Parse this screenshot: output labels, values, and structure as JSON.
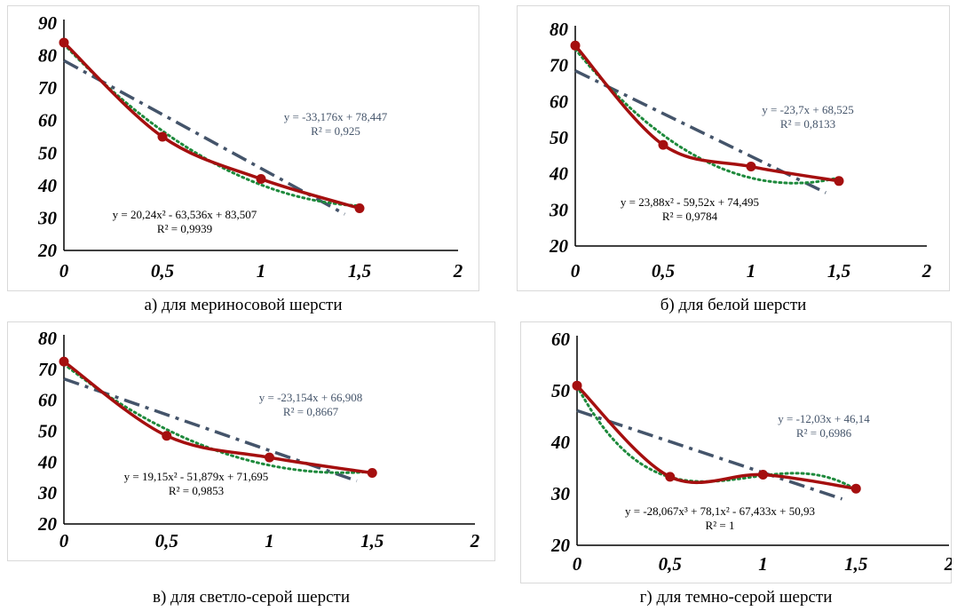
{
  "colors": {
    "data_line": "#a50f0f",
    "data_marker": "#a50f0f",
    "linear_trend": "#44546a",
    "poly_trend": "#1e8a3c",
    "axis": "#000000"
  },
  "chart_data": [
    {
      "type": "line",
      "caption": "а) для мериносовой шерсти",
      "x": [
        0,
        0.5,
        1,
        1.5
      ],
      "series": [
        {
          "values": [
            84,
            55,
            42,
            33
          ]
        }
      ],
      "xlim": [
        0,
        2
      ],
      "ylim": [
        20,
        90
      ],
      "xticks": [
        "0",
        "0,5",
        "1",
        "1,5",
        "2"
      ],
      "yticks": [
        "20",
        "30",
        "40",
        "50",
        "60",
        "70",
        "80",
        "90"
      ],
      "linear_trend": {
        "slope": -33.176,
        "intercept": 78.447,
        "equation": "y = -33,176x + 78,447",
        "r2": "R² = 0,925"
      },
      "poly_trend": {
        "coefs": [
          83.507,
          -63.536,
          20.24
        ],
        "equation": "y = 20,24x² - 63,536x + 83,507",
        "r2": "R² = 0,9939"
      }
    },
    {
      "type": "line",
      "caption": "б) для белой шерсти",
      "x": [
        0,
        0.5,
        1,
        1.5
      ],
      "series": [
        {
          "values": [
            75.5,
            48,
            42,
            38
          ]
        }
      ],
      "xlim": [
        0,
        2
      ],
      "ylim": [
        20,
        80
      ],
      "xticks": [
        "0",
        "0,5",
        "1",
        "1,5",
        "2"
      ],
      "yticks": [
        "20",
        "30",
        "40",
        "50",
        "60",
        "70",
        "80"
      ],
      "linear_trend": {
        "slope": -23.7,
        "intercept": 68.525,
        "equation": "y = -23,7x + 68,525",
        "r2": "R² = 0,8133"
      },
      "poly_trend": {
        "coefs": [
          74.495,
          -59.52,
          23.88
        ],
        "equation": "y = 23,88x² - 59,52x + 74,495",
        "r2": "R² = 0,9784"
      }
    },
    {
      "type": "line",
      "caption": "в) для светло-серой шерсти",
      "x": [
        0,
        0.5,
        1,
        1.5
      ],
      "series": [
        {
          "values": [
            72.5,
            48.5,
            41.5,
            36.5
          ]
        }
      ],
      "xlim": [
        0,
        2
      ],
      "ylim": [
        20,
        80
      ],
      "xticks": [
        "0",
        "0,5",
        "1",
        "1,5",
        "2"
      ],
      "yticks": [
        "20",
        "30",
        "40",
        "50",
        "60",
        "70",
        "80"
      ],
      "linear_trend": {
        "slope": -23.154,
        "intercept": 66.908,
        "equation": "y = -23,154x + 66,908",
        "r2": "R² = 0,8667"
      },
      "poly_trend": {
        "coefs": [
          71.695,
          -51.879,
          19.15
        ],
        "equation": "y = 19,15x² - 51,879x + 71,695",
        "r2": "R² = 0,9853"
      }
    },
    {
      "type": "line",
      "caption": "г) для темно-серой шерсти",
      "x": [
        0,
        0.5,
        1,
        1.5
      ],
      "series": [
        {
          "values": [
            51,
            33.3,
            33.7,
            31
          ]
        }
      ],
      "xlim": [
        0,
        2
      ],
      "ylim": [
        20,
        60
      ],
      "xticks": [
        "0",
        "0,5",
        "1",
        "1,5",
        "2"
      ],
      "yticks": [
        "20",
        "30",
        "40",
        "50",
        "60"
      ],
      "linear_trend": {
        "slope": -12.03,
        "intercept": 46.14,
        "equation": "y = -12,03x + 46,14",
        "r2": "R² = 0,6986"
      },
      "poly_trend": {
        "coefs": [
          50.93,
          -67.433,
          78.1,
          -28.067
        ],
        "equation": "y = -28,067x³ + 78,1x² - 67,433x + 50,93",
        "r2": "R² = 1"
      }
    }
  ]
}
